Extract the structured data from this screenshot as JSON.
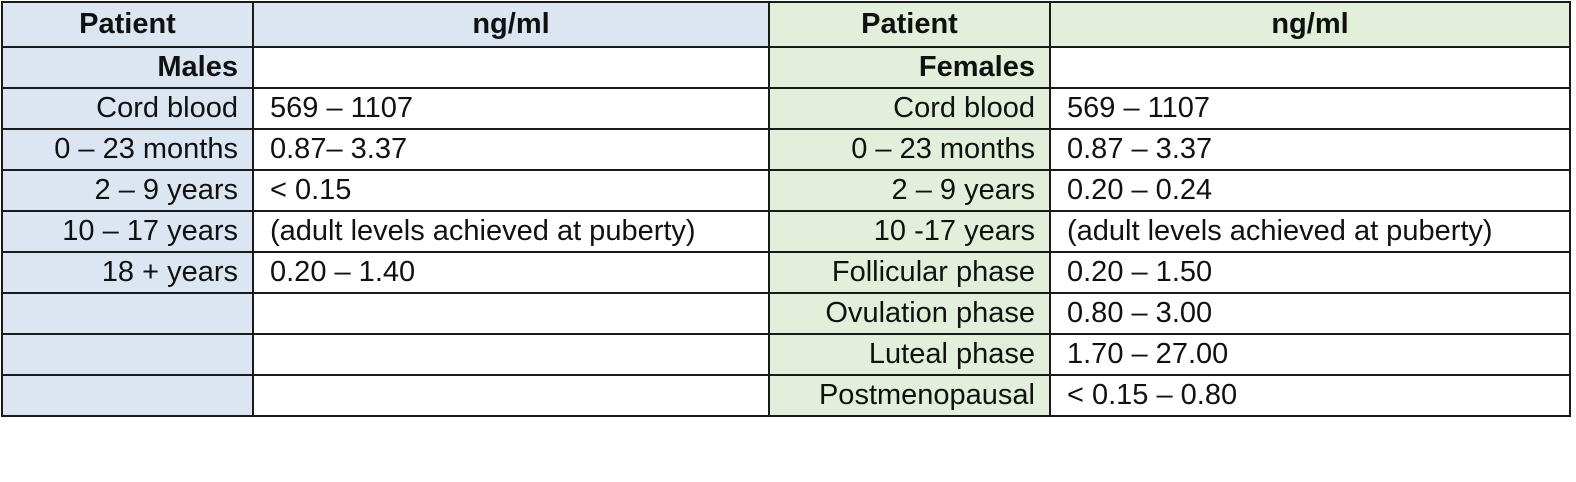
{
  "table": {
    "headers": {
      "male_patient": "Patient",
      "male_unit": "ng/ml",
      "female_patient": "Patient",
      "female_unit": "ng/ml"
    },
    "groups": {
      "male": "Males",
      "female": "Females"
    },
    "rows": [
      {
        "male_label": "Cord blood",
        "male_value": "569 – 1107",
        "female_label": "Cord blood",
        "female_value": "569 – 1107"
      },
      {
        "male_label": "0 – 23 months",
        "male_value": "0.87– 3.37",
        "female_label": "0 – 23 months",
        "female_value": "0.87 – 3.37"
      },
      {
        "male_label": "2 – 9 years",
        "male_value": "< 0.15",
        "female_label": "2 – 9 years",
        "female_value": "0.20 – 0.24"
      },
      {
        "male_label": "10 – 17 years",
        "male_value": "(adult levels achieved at puberty)",
        "female_label": "10 -17 years",
        "female_value": "(adult levels achieved at puberty)"
      },
      {
        "male_label": "18 + years",
        "male_value": "0.20 – 1.40",
        "female_label": "Follicular phase",
        "female_value": "0.20 – 1.50"
      },
      {
        "male_label": "",
        "male_value": "",
        "female_label": "Ovulation phase",
        "female_value": "0.80 – 3.00"
      },
      {
        "male_label": "",
        "male_value": "",
        "female_label": "Luteal phase",
        "female_value": "1.70 – 27.00"
      },
      {
        "male_label": "",
        "male_value": "",
        "female_label": "Postmenopausal",
        "female_value": "< 0.15 – 0.80"
      }
    ]
  },
  "colors": {
    "male_fill": "#dce6f2",
    "female_fill": "#e2efda",
    "border": "#1a1a1a"
  }
}
